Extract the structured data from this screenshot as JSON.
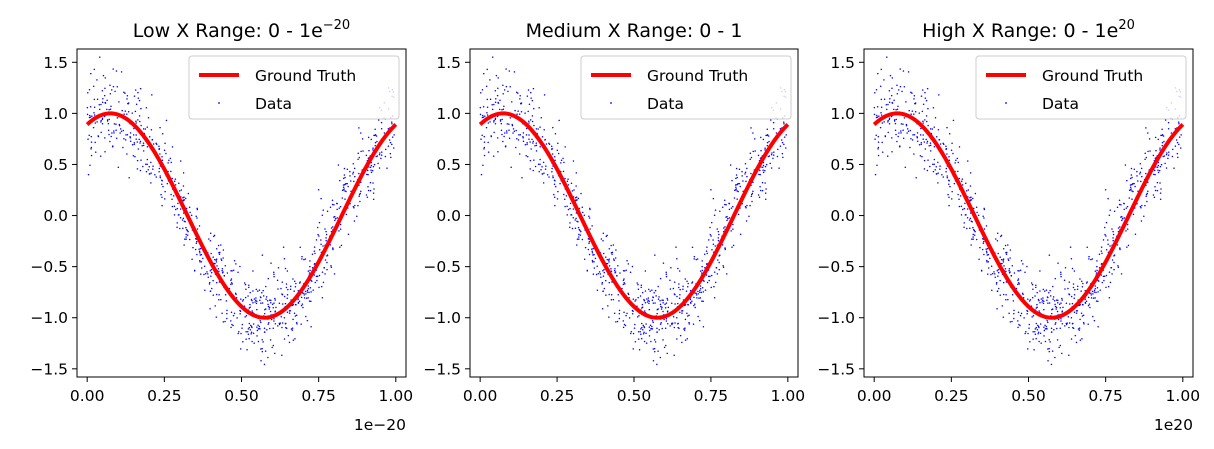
{
  "chart_data": [
    {
      "type": "scatter",
      "title": "Low X Range: 0 - 1e",
      "title_sup": "−20",
      "offset_label": "1e−20",
      "xlim": [
        -0.033,
        1.033
      ],
      "ylim": [
        -1.58,
        1.63
      ],
      "xticks": [
        "0.00",
        "0.25",
        "0.50",
        "0.75",
        "1.00"
      ],
      "yticks": [
        "−1.5",
        "−1.0",
        "−0.5",
        "0.0",
        "0.5",
        "1.0",
        "1.5"
      ],
      "legend": {
        "placement": "upper right",
        "entries": [
          "Ground Truth",
          "Data"
        ]
      },
      "series": [
        {
          "name": "Ground Truth",
          "kind": "line",
          "color": "#ff0000",
          "function": "sin(2π(x·1e20) + 1.1)",
          "x_range": [
            0,
            1
          ]
        },
        {
          "name": "Data",
          "kind": "scatter",
          "color": "#0000ff",
          "count": 1000,
          "noise_sd": 0.2,
          "seed": 7
        }
      ]
    },
    {
      "type": "scatter",
      "title": "Medium X Range: 0 - 1",
      "title_sup": "",
      "offset_label": "",
      "xlim": [
        -0.033,
        1.033
      ],
      "ylim": [
        -1.58,
        1.63
      ],
      "xticks": [
        "0.00",
        "0.25",
        "0.50",
        "0.75",
        "1.00"
      ],
      "yticks": [
        "−1.5",
        "−1.0",
        "−0.5",
        "0.0",
        "0.5",
        "1.0",
        "1.5"
      ],
      "legend": {
        "placement": "upper right",
        "entries": [
          "Ground Truth",
          "Data"
        ]
      },
      "series": [
        {
          "name": "Ground Truth",
          "kind": "line",
          "color": "#ff0000",
          "function": "sin(2πx + 1.1)",
          "x_range": [
            0,
            1
          ]
        },
        {
          "name": "Data",
          "kind": "scatter",
          "color": "#0000ff",
          "count": 1000,
          "noise_sd": 0.2,
          "seed": 7
        }
      ]
    },
    {
      "type": "scatter",
      "title": "High X Range: 0 - 1e",
      "title_sup": "20",
      "offset_label": "1e20",
      "xlim": [
        -0.033,
        1.033
      ],
      "ylim": [
        -1.58,
        1.63
      ],
      "xticks": [
        "0.00",
        "0.25",
        "0.50",
        "0.75",
        "1.00"
      ],
      "yticks": [
        "−1.5",
        "−1.0",
        "−0.5",
        "0.0",
        "0.5",
        "1.0",
        "1.5"
      ],
      "legend": {
        "placement": "upper right",
        "entries": [
          "Ground Truth",
          "Data"
        ]
      },
      "series": [
        {
          "name": "Ground Truth",
          "kind": "line",
          "color": "#ff0000",
          "function": "sin(2π(x·1e−20) + 1.1)",
          "x_range": [
            0,
            1
          ]
        },
        {
          "name": "Data",
          "kind": "scatter",
          "color": "#0000ff",
          "count": 1000,
          "noise_sd": 0.2,
          "seed": 7
        }
      ]
    }
  ]
}
